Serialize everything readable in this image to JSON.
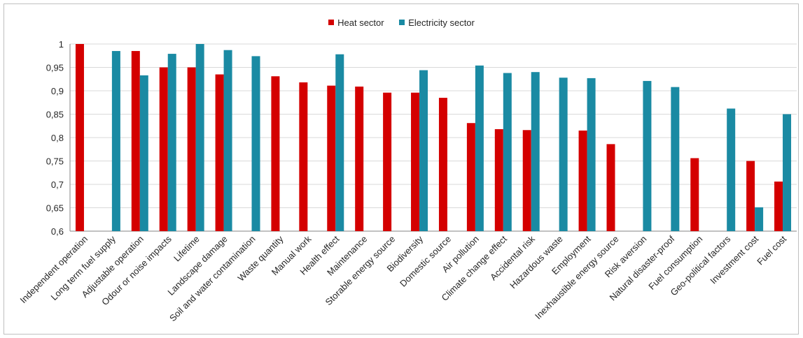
{
  "chart_data": {
    "type": "bar",
    "title": "",
    "xlabel": "",
    "ylabel": "",
    "ylim": [
      0.6,
      1.0
    ],
    "yticks": [
      0.6,
      0.65,
      0.7,
      0.75,
      0.8,
      0.85,
      0.9,
      0.95,
      1.0
    ],
    "ytick_labels": [
      "0,6",
      "0,65",
      "0,7",
      "0,75",
      "0,8",
      "0,85",
      "0,9",
      "0,95",
      "1"
    ],
    "grid": true,
    "legend_position": "top",
    "categories": [
      "Independent operation",
      "Long term fuel supply",
      "Adjustable operation",
      "Odour or noise impacts",
      "Lifetime",
      "Landscape damage",
      "Soil and water contamination",
      "Waste quantity",
      "Manual work",
      "Health effect",
      "Maintenance",
      "Storable energy source",
      "Biodiversity",
      "Domestic source",
      "Air pollution",
      "Climate change effect",
      "Accidental risk",
      "Hazardous waste",
      "Employment",
      "Inexhaustible energy source",
      "Risk aversion",
      "Natural disaster-proof",
      "Fuel consumption",
      "Geo-political factors",
      "Investment cost",
      "Fuel cost"
    ],
    "series": [
      {
        "name": "Heat sector",
        "color": "#d40000",
        "values": [
          1.0,
          null,
          0.985,
          0.95,
          0.95,
          0.935,
          null,
          0.931,
          0.918,
          0.911,
          0.909,
          0.896,
          0.896,
          0.885,
          0.831,
          0.818,
          0.816,
          null,
          0.815,
          0.786,
          null,
          null,
          0.756,
          null,
          0.75,
          0.706
        ]
      },
      {
        "name": "Electricity sector",
        "color": "#1a8aa3",
        "values": [
          null,
          0.985,
          0.933,
          0.979,
          1.0,
          0.987,
          0.974,
          null,
          null,
          0.978,
          null,
          null,
          0.944,
          null,
          0.954,
          0.938,
          0.94,
          0.928,
          0.927,
          null,
          0.921,
          0.908,
          null,
          0.862,
          0.651,
          0.85
        ]
      }
    ]
  }
}
